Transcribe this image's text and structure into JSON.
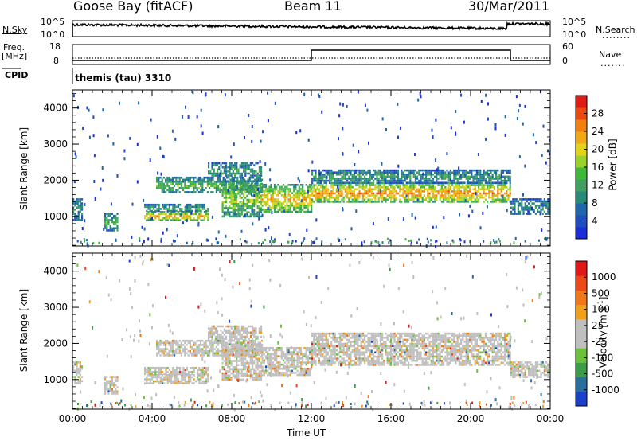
{
  "header": {
    "station": "Goose Bay (fitACF)",
    "beam": "Beam 11",
    "date": "30/Mar/2011"
  },
  "noise_panel": {
    "left_label": "N.Sky",
    "left_ticks": [
      "10^5",
      "10^0"
    ],
    "right_ticks": [
      "10^5",
      "10^0"
    ],
    "right_label": "N.Search",
    "right_label_line": "........"
  },
  "freq_panel": {
    "left_label_1": "Freq.",
    "left_label_2": "[MHz]",
    "left_ticks": [
      "18",
      "8"
    ],
    "right_ticks": [
      "60",
      "0"
    ],
    "right_label": "Nave",
    "right_label_line": "......."
  },
  "cpid": {
    "label": "CPID",
    "value": "themis (tau) 3310"
  },
  "x_axis": {
    "ticks": [
      "00:00",
      "04:00",
      "08:00",
      "12:00",
      "16:00",
      "20:00",
      "00:00"
    ],
    "label": "Time UT"
  },
  "chart_data": [
    {
      "type": "heatmap",
      "name": "power",
      "ylabel": "Slant Range [km]",
      "ylim": [
        180,
        4500
      ],
      "y_ticks": [
        1000,
        2000,
        3000,
        4000
      ],
      "xlim_hours": [
        0,
        24
      ],
      "colorbar": {
        "label": "Power [dB]",
        "ticks": [
          "4",
          "8",
          "12",
          "16",
          "20",
          "24",
          "28"
        ],
        "colors": [
          "#1a2fd9",
          "#1f4ec0",
          "#1f67a8",
          "#2a8a7a",
          "#40a060",
          "#3fb83a",
          "#9bd22a",
          "#e2d21a",
          "#f0a814",
          "#f2800f",
          "#ea4a10",
          "#e01d14"
        ]
      },
      "regions": [
        {
          "t": [
            0.0,
            0.5
          ],
          "r": [
            900,
            1500
          ],
          "level": 0.3
        },
        {
          "t": [
            1.6,
            2.3
          ],
          "r": [
            600,
            1100
          ],
          "level": 0.45
        },
        {
          "t": [
            3.6,
            6.8
          ],
          "r": [
            900,
            1150
          ],
          "level": 0.75
        },
        {
          "t": [
            3.6,
            6.8
          ],
          "r": [
            1150,
            1350
          ],
          "level": 0.4
        },
        {
          "t": [
            4.2,
            9.5
          ],
          "r": [
            1650,
            2100
          ],
          "level": 0.45
        },
        {
          "t": [
            6.8,
            9.5
          ],
          "r": [
            2100,
            2500
          ],
          "level": 0.35
        },
        {
          "t": [
            7.5,
            9.5
          ],
          "r": [
            1000,
            2000
          ],
          "level": 0.55
        },
        {
          "t": [
            9.5,
            12.0
          ],
          "r": [
            1100,
            1900
          ],
          "level": 0.72
        },
        {
          "t": [
            12.0,
            22.0
          ],
          "r": [
            1400,
            1950
          ],
          "level": 0.82
        },
        {
          "t": [
            12.0,
            22.0
          ],
          "r": [
            1950,
            2300
          ],
          "level": 0.35
        },
        {
          "t": [
            22.0,
            24.0
          ],
          "r": [
            1050,
            1500
          ],
          "level": 0.3
        }
      ]
    },
    {
      "type": "heatmap",
      "name": "velocity",
      "ylabel": "Slant Range [km]",
      "ylim": [
        180,
        4500
      ],
      "y_ticks": [
        1000,
        2000,
        3000,
        4000
      ],
      "xlim_hours": [
        0,
        24
      ],
      "colorbar": {
        "label": "Velocity [m s",
        "label_sup": "-1",
        "label_end": "]",
        "ticks": [
          "1000",
          "500",
          "100",
          "25",
          "-25",
          "-100",
          "-500",
          "-1000"
        ],
        "colors": [
          "#1c3fcc",
          "#2a6e9e",
          "#3c9c4a",
          "#6dc03a",
          "#bfbfbf",
          "#bfbfbf",
          "#f1a01c",
          "#f07818",
          "#ec4818",
          "#e01818"
        ]
      },
      "regions": [
        {
          "t": [
            0.0,
            0.5
          ],
          "r": [
            900,
            1500
          ],
          "level": 0.5
        },
        {
          "t": [
            1.6,
            2.3
          ],
          "r": [
            600,
            1100
          ],
          "level": 0.5
        },
        {
          "t": [
            3.6,
            6.8
          ],
          "r": [
            900,
            1150
          ],
          "level": 0.5
        },
        {
          "t": [
            3.6,
            6.8
          ],
          "r": [
            1150,
            1350
          ],
          "level": 0.5
        },
        {
          "t": [
            4.2,
            9.5
          ],
          "r": [
            1650,
            2100
          ],
          "level": 0.5
        },
        {
          "t": [
            6.8,
            9.5
          ],
          "r": [
            2100,
            2500
          ],
          "level": 0.5
        },
        {
          "t": [
            7.5,
            9.5
          ],
          "r": [
            1000,
            2000
          ],
          "level": 0.5
        },
        {
          "t": [
            9.5,
            12.0
          ],
          "r": [
            1100,
            1900
          ],
          "level": 0.5
        },
        {
          "t": [
            12.0,
            22.0
          ],
          "r": [
            1400,
            1950
          ],
          "level": 0.5
        },
        {
          "t": [
            12.0,
            22.0
          ],
          "r": [
            1950,
            2300
          ],
          "level": 0.5
        },
        {
          "t": [
            22.0,
            24.0
          ],
          "r": [
            1050,
            1500
          ],
          "level": 0.5
        }
      ]
    }
  ]
}
